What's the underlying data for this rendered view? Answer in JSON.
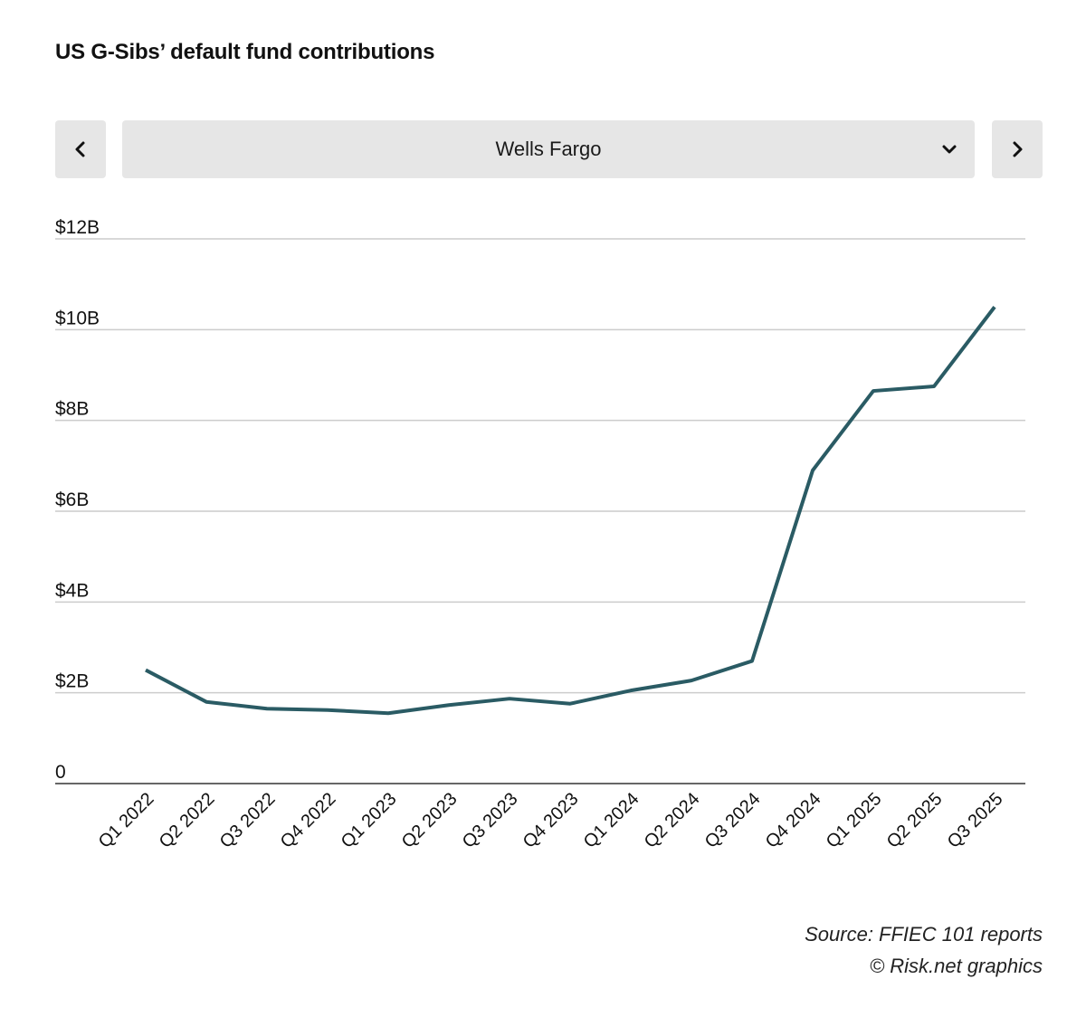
{
  "chart_data": {
    "type": "line",
    "title": "US G-Sibs’ default fund contributions",
    "selector": {
      "selected": "Wells Fargo"
    },
    "categories": [
      "Q1 2022",
      "Q2 2022",
      "Q3 2022",
      "Q4 2022",
      "Q1 2023",
      "Q2 2023",
      "Q3 2023",
      "Q4 2023",
      "Q1 2024",
      "Q2 2024",
      "Q3 2024",
      "Q4 2024",
      "Q1 2025",
      "Q2 2025",
      "Q3 2025"
    ],
    "series": [
      {
        "name": "Wells Fargo",
        "values": [
          2.5,
          1.8,
          1.65,
          1.62,
          1.55,
          1.73,
          1.87,
          1.76,
          2.05,
          2.27,
          2.7,
          6.9,
          8.65,
          8.75,
          10.5
        ]
      }
    ],
    "ylim": [
      0,
      12
    ],
    "yticks": [
      0,
      2,
      4,
      6,
      8,
      10,
      12
    ],
    "ytick_labels": [
      "0",
      "$2B",
      "$4B",
      "$6B",
      "$8B",
      "$10B",
      "$12B"
    ],
    "xlabel": "",
    "ylabel": "",
    "grid": true,
    "line_color": "#2a5b64"
  },
  "footer": {
    "source": "Source: FFIEC 101 reports",
    "credit": "© Risk.net graphics"
  }
}
